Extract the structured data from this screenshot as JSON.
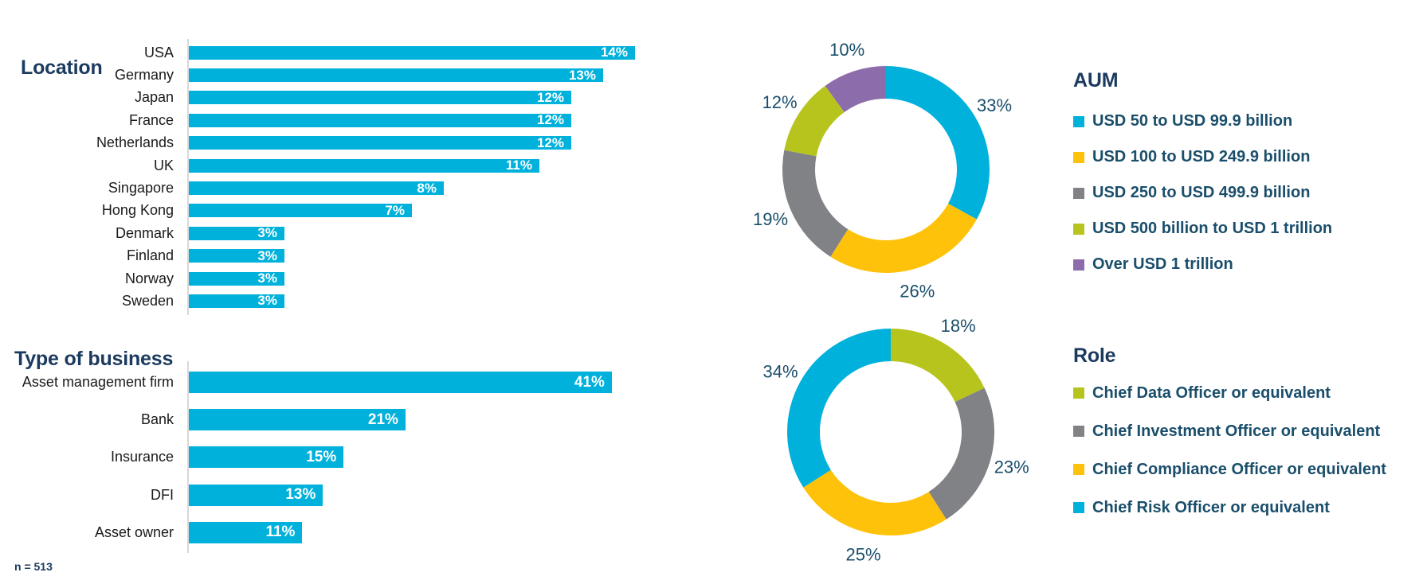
{
  "footnote": "n = 513",
  "colors": {
    "cyan": "#00B1DC",
    "yellow": "#FFC20A",
    "gray": "#818285",
    "green": "#B7C41E",
    "purple": "#8D6CAC",
    "heading_text": "#1B3A5F",
    "value_label_text": "#1A4E6B",
    "bar_value_text": "#FFFFFF",
    "axis_line": "#D9D9D9"
  },
  "chart_data": [
    {
      "type": "bar",
      "title": "Location",
      "orientation": "horizontal",
      "categories": [
        "USA",
        "Germany",
        "Japan",
        "France",
        "Netherlands",
        "UK",
        "Singapore",
        "Hong Kong",
        "Denmark",
        "Finland",
        "Norway",
        "Sweden"
      ],
      "values": [
        14,
        13,
        12,
        12,
        12,
        11,
        8,
        7,
        3,
        3,
        3,
        3
      ],
      "value_suffix": "%",
      "xlim": [
        0,
        14
      ],
      "bar_color": "#00B1DC",
      "grid": false,
      "value_labels": "inside-end"
    },
    {
      "type": "bar",
      "title": "Type of business",
      "orientation": "horizontal",
      "categories": [
        "Asset management firm",
        "Bank",
        "Insurance",
        "DFI",
        "Asset owner"
      ],
      "values": [
        41,
        21,
        15,
        13,
        11
      ],
      "value_suffix": "%",
      "xlim": [
        0,
        41
      ],
      "bar_color": "#00B1DC",
      "grid": false,
      "value_labels": "inside-end"
    },
    {
      "type": "pie",
      "subtype": "donut",
      "title": "AUM",
      "start_angle": "top",
      "direction": "clockwise",
      "legend_position": "right",
      "labels": [
        "USD 50 to USD 99.9 billion",
        "USD 100 to USD 249.9 billion",
        "USD 250 to USD 499.9 billion",
        "USD 500 billion to USD 1 trillion",
        "Over USD 1 trillion"
      ],
      "values": [
        33,
        26,
        19,
        12,
        10
      ],
      "value_suffix": "%",
      "colors": [
        "#00B1DC",
        "#FFC20A",
        "#818285",
        "#B7C41E",
        "#8D6CAC"
      ]
    },
    {
      "type": "pie",
      "subtype": "donut",
      "title": "Role",
      "start_angle": "top",
      "direction": "clockwise",
      "legend_position": "right",
      "labels": [
        "Chief Data Officer or equivalent",
        "Chief Investment Officer or equivalent",
        "Chief Compliance Officer or equivalent",
        "Chief Risk Officer or equivalent"
      ],
      "values": [
        18,
        23,
        25,
        34
      ],
      "value_suffix": "%",
      "colors": [
        "#B7C41E",
        "#818285",
        "#FFC20A",
        "#00B1DC"
      ]
    }
  ]
}
